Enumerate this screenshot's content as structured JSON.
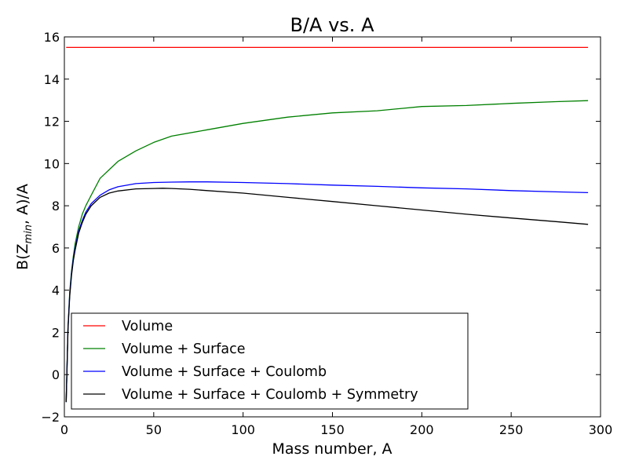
{
  "chart_data": {
    "type": "line",
    "title": "B/A vs. A",
    "xlabel": "Mass number, A",
    "ylabel_main": "B(Z",
    "ylabel_sub": "min",
    "ylabel_end": ", A)/A",
    "xlim": [
      0,
      300
    ],
    "ylim": [
      -2,
      16
    ],
    "xticks": [
      0,
      50,
      100,
      150,
      200,
      250,
      300
    ],
    "yticks": [
      -2,
      0,
      2,
      4,
      6,
      8,
      10,
      12,
      14,
      16
    ],
    "ytick_labels": [
      "−2",
      "0",
      "2",
      "4",
      "6",
      "8",
      "10",
      "12",
      "14",
      "16"
    ],
    "grid": false,
    "legend_position": "lower-left",
    "x_range_plotted": [
      1,
      293
    ],
    "series": [
      {
        "name": "Volume",
        "color": "#ff0000",
        "x": [
          1,
          293
        ],
        "y": [
          15.5,
          15.5
        ]
      },
      {
        "name": "Volume + Surface",
        "color": "#008000",
        "x": [
          1,
          2,
          3,
          4,
          5,
          6,
          8,
          10,
          12,
          15,
          20,
          25,
          30,
          40,
          50,
          60,
          80,
          100,
          125,
          150,
          175,
          200,
          225,
          250,
          275,
          293
        ],
        "y": [
          -1.3,
          2.2,
          3.9,
          4.9,
          5.6,
          6.2,
          7.0,
          7.6,
          8.0,
          8.5,
          9.3,
          9.7,
          10.1,
          10.6,
          11.0,
          11.3,
          11.6,
          11.9,
          12.2,
          12.4,
          12.5,
          12.7,
          12.75,
          12.85,
          12.93,
          12.98
        ]
      },
      {
        "name": "Volume + Surface + Coulomb",
        "color": "#0000ff",
        "x": [
          1,
          2,
          3,
          4,
          5,
          6,
          8,
          10,
          12,
          15,
          20,
          25,
          30,
          40,
          50,
          60,
          70,
          80,
          100,
          125,
          150,
          175,
          200,
          225,
          250,
          275,
          293
        ],
        "y": [
          -1.3,
          2.2,
          3.8,
          4.8,
          5.5,
          6.0,
          6.8,
          7.3,
          7.7,
          8.1,
          8.5,
          8.75,
          8.9,
          9.05,
          9.1,
          9.12,
          9.13,
          9.13,
          9.1,
          9.05,
          8.98,
          8.92,
          8.85,
          8.8,
          8.72,
          8.66,
          8.62
        ]
      },
      {
        "name": "Volume + Surface + Coulomb + Symmetry",
        "color": "#000000",
        "x": [
          1,
          2,
          3,
          4,
          5,
          6,
          8,
          10,
          12,
          15,
          20,
          25,
          30,
          40,
          50,
          55,
          60,
          70,
          80,
          100,
          125,
          150,
          175,
          200,
          225,
          250,
          275,
          293
        ],
        "y": [
          -1.3,
          2.1,
          3.7,
          4.7,
          5.4,
          5.9,
          6.7,
          7.2,
          7.6,
          8.0,
          8.4,
          8.6,
          8.7,
          8.8,
          8.82,
          8.83,
          8.82,
          8.78,
          8.72,
          8.6,
          8.4,
          8.2,
          8.0,
          7.8,
          7.6,
          7.42,
          7.25,
          7.12
        ]
      }
    ]
  }
}
